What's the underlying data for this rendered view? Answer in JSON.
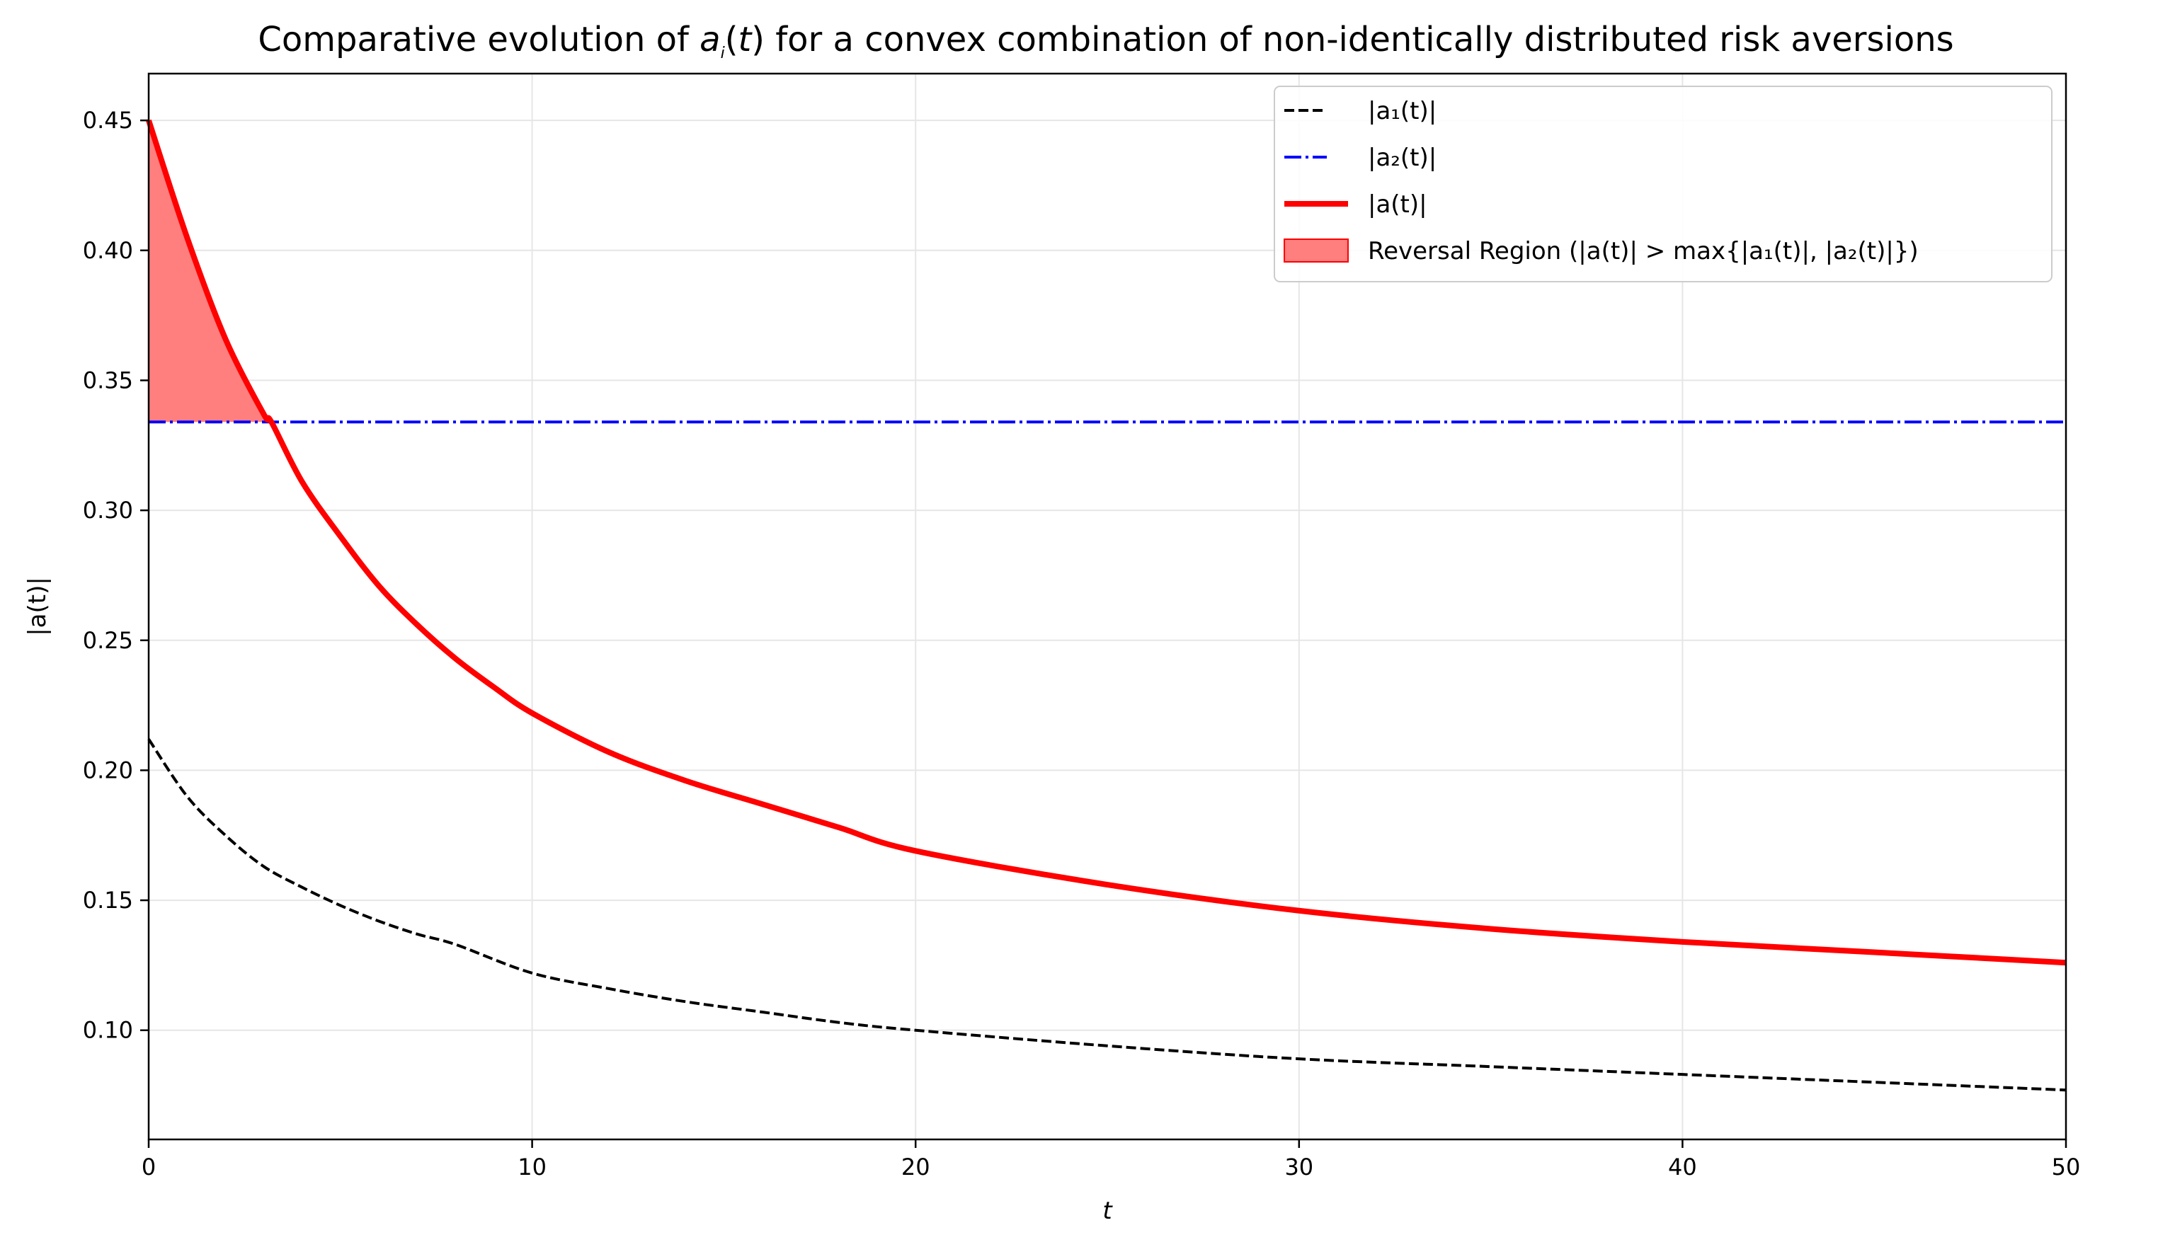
{
  "chart_data": {
    "type": "line",
    "title_parts": [
      "Comparative evolution of ",
      "a",
      "i",
      "(",
      "t",
      ")",
      " for a convex combination of non-identically distributed risk aversions"
    ],
    "xlabel": "t",
    "ylabel": "|a(t)|",
    "xlim": [
      0,
      50
    ],
    "ylim": [
      0.058,
      0.468
    ],
    "xticks": [
      0,
      10,
      20,
      30,
      40,
      50
    ],
    "xtick_labels": [
      "0",
      "10",
      "20",
      "30",
      "40",
      "50"
    ],
    "yticks": [
      0.1,
      0.15,
      0.2,
      0.25,
      0.3,
      0.35,
      0.4,
      0.45
    ],
    "ytick_labels": [
      "0.10",
      "0.15",
      "0.20",
      "0.25",
      "0.30",
      "0.35",
      "0.40",
      "0.45"
    ],
    "grid": true,
    "legend_position": "top-right",
    "series": [
      {
        "name": "|a1(t)|",
        "legend_label": "|a₁(t)|",
        "style": "dashed",
        "color": "#000000",
        "x": [
          0,
          1,
          2,
          3,
          4,
          5,
          6,
          7,
          8,
          10,
          12,
          14,
          16,
          18,
          20,
          25,
          30,
          35,
          40,
          45,
          50
        ],
        "y": [
          0.212,
          0.19,
          0.175,
          0.163,
          0.155,
          0.148,
          0.142,
          0.137,
          0.133,
          0.122,
          0.116,
          0.111,
          0.107,
          0.103,
          0.1,
          0.094,
          0.089,
          0.086,
          0.083,
          0.08,
          0.077
        ]
      },
      {
        "name": "|a2(t)|",
        "legend_label": "|a₂(t)|",
        "style": "dashdot",
        "color": "#0000ff",
        "x": [
          0,
          50
        ],
        "y": [
          0.334,
          0.334
        ]
      },
      {
        "name": "|a(t)|",
        "legend_label": "|a(t)|",
        "style": "solid",
        "color": "#ff0000",
        "x": [
          0,
          1,
          2,
          3,
          3.2,
          4,
          5,
          6,
          7,
          8,
          9,
          10,
          12,
          14,
          16,
          18,
          20,
          25,
          30,
          35,
          40,
          45,
          50
        ],
        "y": [
          0.45,
          0.405,
          0.366,
          0.337,
          0.334,
          0.311,
          0.29,
          0.271,
          0.256,
          0.243,
          0.232,
          0.222,
          0.207,
          0.196,
          0.187,
          0.178,
          0.169,
          0.156,
          0.146,
          0.139,
          0.134,
          0.13,
          0.126
        ]
      }
    ],
    "fill_region": {
      "name": "Reversal Region",
      "legend_label": "Reversal Region (|a(t)| > max{|a₁(t)|, |a₂(t)|})",
      "color": "#ff7f7f",
      "x_start": 0,
      "x_end": 3.2,
      "between": [
        "|a(t)|",
        "|a2(t)|"
      ]
    }
  }
}
